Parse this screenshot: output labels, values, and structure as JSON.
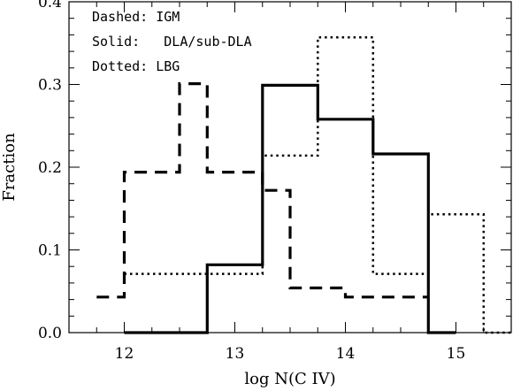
{
  "chart_data": {
    "type": "histogram-step",
    "xlabel": "log N(C IV)",
    "ylabel": "Fraction",
    "xlim": [
      11.5,
      15.5
    ],
    "ylim": [
      0.0,
      0.4
    ],
    "x_ticks": [
      12,
      13,
      14,
      15
    ],
    "x_tick_labels": [
      "12",
      "13",
      "14",
      "15"
    ],
    "y_ticks": [
      0.0,
      0.1,
      0.2,
      0.3,
      0.4
    ],
    "y_tick_labels": [
      "0.0",
      "0.1",
      "0.2",
      "0.3",
      "0.4"
    ],
    "legend": [
      "Dashed: IGM",
      "Solid:   DLA/sub-DLA",
      "Dotted: LBG"
    ],
    "legend_placement": "top-left",
    "grid": false,
    "series": [
      {
        "style": "dashed",
        "bin_edges": [
          11.75,
          12.0,
          12.5,
          12.75,
          13.25,
          13.5,
          14.0,
          14.5,
          14.75
        ],
        "values": [
          0.043,
          0.194,
          0.301,
          0.194,
          0.172,
          0.054,
          0.043,
          0.043
        ]
      },
      {
        "style": "solid",
        "bin_edges": [
          12.0,
          12.75,
          13.25,
          13.75,
          14.25,
          14.75,
          15.0
        ],
        "values": [
          0.0,
          0.082,
          0.299,
          0.258,
          0.216,
          0.0
        ]
      },
      {
        "style": "dotted",
        "bin_edges": [
          12.0,
          13.25,
          13.75,
          14.25,
          14.75,
          15.25,
          15.5
        ],
        "values": [
          0.071,
          0.214,
          0.357,
          0.071,
          0.143,
          0.0
        ]
      }
    ]
  }
}
